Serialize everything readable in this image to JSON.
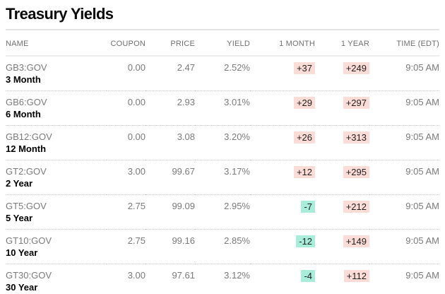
{
  "page": {
    "title": "Treasury Yields"
  },
  "colors": {
    "up_change_bg": "#fbdcd7",
    "down_change_bg": "#a7edd9",
    "tenor_text": "#000000",
    "muted_text": "#7a7a7a"
  },
  "table": {
    "columns": [
      "NAME",
      "COUPON",
      "PRICE",
      "YIELD",
      "1 MONTH",
      "1 YEAR",
      "TIME (EDT)"
    ],
    "rows": [
      {
        "ticker": "GB3:GOV",
        "tenor": "3 Month",
        "coupon": "0.00",
        "price": "2.47",
        "yield": "2.52%",
        "one_month": "+37",
        "one_month_variant": "up",
        "one_year": "+249",
        "one_year_variant": "up",
        "time": "9:05 AM"
      },
      {
        "ticker": "GB6:GOV",
        "tenor": "6 Month",
        "coupon": "0.00",
        "price": "2.93",
        "yield": "3.01%",
        "one_month": "+29",
        "one_month_variant": "up",
        "one_year": "+297",
        "one_year_variant": "up",
        "time": "9:05 AM"
      },
      {
        "ticker": "GB12:GOV",
        "tenor": "12 Month",
        "coupon": "0.00",
        "price": "3.08",
        "yield": "3.20%",
        "one_month": "+26",
        "one_month_variant": "up",
        "one_year": "+313",
        "one_year_variant": "up",
        "time": "9:05 AM"
      },
      {
        "ticker": "GT2:GOV",
        "tenor": "2 Year",
        "coupon": "3.00",
        "price": "99.67",
        "yield": "3.17%",
        "one_month": "+12",
        "one_month_variant": "up",
        "one_year": "+295",
        "one_year_variant": "up",
        "time": "9:05 AM"
      },
      {
        "ticker": "GT5:GOV",
        "tenor": "5 Year",
        "coupon": "2.75",
        "price": "99.09",
        "yield": "2.95%",
        "one_month": "-7",
        "one_month_variant": "down",
        "one_year": "+212",
        "one_year_variant": "up",
        "time": "9:05 AM"
      },
      {
        "ticker": "GT10:GOV",
        "tenor": "10 Year",
        "coupon": "2.75",
        "price": "99.16",
        "yield": "2.85%",
        "one_month": "-12",
        "one_month_variant": "down",
        "one_year": "+149",
        "one_year_variant": "up",
        "time": "9:05 AM"
      },
      {
        "ticker": "GT30:GOV",
        "tenor": "30 Year",
        "coupon": "3.00",
        "price": "97.61",
        "yield": "3.12%",
        "one_month": "-4",
        "one_month_variant": "down",
        "one_year": "+112",
        "one_year_variant": "up",
        "time": "9:05 AM"
      }
    ]
  }
}
